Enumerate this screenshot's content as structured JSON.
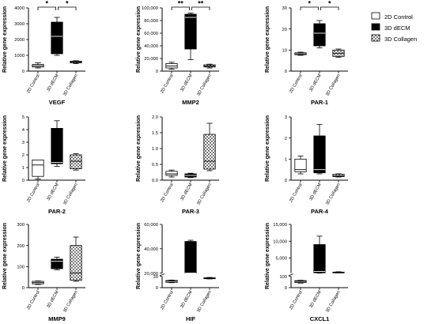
{
  "legend": {
    "items": [
      {
        "name": "2D Control",
        "color": "#ffffff",
        "pattern": "none"
      },
      {
        "name": "3D dECM",
        "color": "#000000",
        "pattern": "solid"
      },
      {
        "name": "3D Collagen",
        "color": "#c8c8c8",
        "pattern": "checker"
      }
    ]
  },
  "chart_data": [
    {
      "type": "boxplot",
      "title": "VEGF",
      "ylabel": "Relative gene expression",
      "ylim": [
        0,
        4000
      ],
      "yticks": [
        0,
        1000,
        2000,
        3000,
        4000
      ],
      "yticklabels": [
        "0",
        "1000",
        "2000",
        "3000",
        "4000"
      ],
      "categories": [
        "2D Control",
        "3D dECM",
        "3D Collagen"
      ],
      "boxes": [
        {
          "min": 200,
          "q1": 260,
          "median": 340,
          "q3": 420,
          "max": 520
        },
        {
          "min": 1000,
          "q1": 1100,
          "median": 2200,
          "q3": 3100,
          "max": 3400
        },
        {
          "min": 470,
          "q1": 520,
          "median": 580,
          "q3": 630,
          "max": 660
        }
      ],
      "significance": [
        {
          "from": 0,
          "to": 1,
          "label": "*"
        },
        {
          "from": 1,
          "to": 2,
          "label": "*"
        }
      ]
    },
    {
      "type": "boxplot",
      "title": "MMP2",
      "ylabel": "Relative gene expression",
      "ylim": [
        0,
        100000
      ],
      "yticks": [
        0,
        20000,
        40000,
        60000,
        80000,
        100000
      ],
      "yticklabels": [
        "0",
        "20,000",
        "40,000",
        "60,000",
        "80,000",
        "100,000"
      ],
      "categories": [
        "2D Control",
        "3D dECM",
        "3D Collagen"
      ],
      "boxes": [
        {
          "min": 3000,
          "q1": 5000,
          "median": 8000,
          "q3": 12000,
          "max": 14000
        },
        {
          "min": 18000,
          "q1": 35000,
          "median": 85000,
          "q3": 90000,
          "max": 92000
        },
        {
          "min": 5000,
          "q1": 6500,
          "median": 8000,
          "q3": 10000,
          "max": 11000
        }
      ],
      "significance": [
        {
          "from": 0,
          "to": 1,
          "label": "**"
        },
        {
          "from": 1,
          "to": 2,
          "label": "**"
        }
      ]
    },
    {
      "type": "boxplot",
      "title": "PAR-1",
      "ylabel": "Relative gene expression",
      "ylim": [
        0,
        30
      ],
      "yticks": [
        0,
        10,
        20,
        30
      ],
      "yticklabels": [
        "0",
        "10",
        "20",
        "30"
      ],
      "categories": [
        "2D Control",
        "3D dECM",
        "3D Collagen"
      ],
      "boxes": [
        {
          "min": 7.5,
          "q1": 7.8,
          "median": 8.2,
          "q3": 8.7,
          "max": 9.0
        },
        {
          "min": 11,
          "q1": 12,
          "median": 18,
          "q3": 22.5,
          "max": 24
        },
        {
          "min": 6.5,
          "q1": 7,
          "median": 8.5,
          "q3": 10,
          "max": 10.5
        }
      ],
      "significance": [
        {
          "from": 0,
          "to": 1,
          "label": "*"
        },
        {
          "from": 1,
          "to": 2,
          "label": "*"
        }
      ]
    },
    {
      "type": "boxplot",
      "title": "PAR-2",
      "ylabel": "Relative gene expression",
      "ylim": [
        0,
        5
      ],
      "yticks": [
        0,
        1,
        2,
        3,
        4,
        5
      ],
      "yticklabels": [
        "0",
        "1",
        "2",
        "3",
        "4",
        "5"
      ],
      "categories": [
        "2D Control",
        "3D dECM",
        "3D Collagen"
      ],
      "boxes": [
        {
          "min": 0.1,
          "q1": 0.3,
          "median": 1.2,
          "q3": 1.6,
          "max": 1.6
        },
        {
          "min": 1.1,
          "q1": 1.3,
          "median": 1.4,
          "q3": 4.1,
          "max": 4.7
        },
        {
          "min": 0.8,
          "q1": 0.9,
          "median": 1.5,
          "q3": 2.0,
          "max": 2.1
        }
      ],
      "significance": []
    },
    {
      "type": "boxplot",
      "title": "PAR-3",
      "ylabel": "Relative gene expression",
      "ylim": [
        0,
        2.0
      ],
      "yticks": [
        0,
        0.5,
        1.0,
        1.5,
        2.0
      ],
      "yticklabels": [
        "0.0",
        "0.5",
        "1.0",
        "1.5",
        "2.0"
      ],
      "categories": [
        "2D Control",
        "3D dECM",
        "3D Collagen"
      ],
      "boxes": [
        {
          "min": 0.1,
          "q1": 0.15,
          "median": 0.2,
          "q3": 0.28,
          "max": 0.32
        },
        {
          "min": 0.08,
          "q1": 0.1,
          "median": 0.15,
          "q3": 0.2,
          "max": 0.22
        },
        {
          "min": 0.3,
          "q1": 0.35,
          "median": 0.6,
          "q3": 1.45,
          "max": 1.8
        }
      ],
      "significance": []
    },
    {
      "type": "boxplot",
      "title": "PAR-4",
      "ylabel": "Relative gene expression",
      "ylim": [
        0,
        3
      ],
      "yticks": [
        0,
        1,
        2,
        3
      ],
      "yticklabels": [
        "0",
        "1",
        "2",
        "3"
      ],
      "categories": [
        "2D Control",
        "3D dECM",
        "3D Collagen"
      ],
      "boxes": [
        {
          "min": 0.3,
          "q1": 0.4,
          "median": 0.5,
          "q3": 1.0,
          "max": 1.15
        },
        {
          "min": 0.3,
          "q1": 0.35,
          "median": 0.5,
          "q3": 2.1,
          "max": 2.65
        },
        {
          "min": 0.15,
          "q1": 0.17,
          "median": 0.2,
          "q3": 0.28,
          "max": 0.3
        }
      ],
      "significance": []
    },
    {
      "type": "boxplot",
      "title": "MMP9",
      "ylabel": "Relative gene expression",
      "ylim": [
        0,
        300
      ],
      "yticks": [
        0,
        100,
        200,
        300
      ],
      "yticklabels": [
        "0",
        "100",
        "200",
        "300"
      ],
      "categories": [
        "2D Control",
        "3D dECM",
        "3D Collagen"
      ],
      "boxes": [
        {
          "min": 15,
          "q1": 18,
          "median": 24,
          "q3": 30,
          "max": 32
        },
        {
          "min": 85,
          "q1": 90,
          "median": 125,
          "q3": 135,
          "max": 145
        },
        {
          "min": 30,
          "q1": 35,
          "median": 70,
          "q3": 200,
          "max": 240
        }
      ],
      "significance": []
    },
    {
      "type": "boxplot",
      "title": "HIF",
      "ylabel": "Relative gene expression",
      "ylim": [
        0,
        60000
      ],
      "axis_break": [
        30,
        20000
      ],
      "yticks": [
        0,
        30,
        20000,
        40000,
        60000
      ],
      "yticklabels": [
        "0",
        "30",
        "20,000",
        "40,000",
        "60,000"
      ],
      "categories": [
        "2D Control",
        "3D dECM",
        "3D Collagen"
      ],
      "boxes": [
        {
          "min": 13,
          "q1": 14,
          "median": 17,
          "q3": 19,
          "max": 20
        },
        {
          "min": 40,
          "q1": 42,
          "median": 44,
          "q3": 46000,
          "max": 47000
        },
        {
          "min": 23,
          "q1": 23.5,
          "median": 25,
          "q3": 26,
          "max": 27
        }
      ],
      "significance": []
    },
    {
      "type": "boxplot",
      "title": "CXCL1",
      "ylabel": "Relative gene expression",
      "ylim": [
        0,
        15000
      ],
      "axis_break": [
        100,
        500
      ],
      "yticks": [
        0,
        100,
        5000,
        10000,
        15000
      ],
      "yticklabels": [
        "0",
        "100",
        "5,000",
        "10,000",
        "15,000"
      ],
      "categories": [
        "2D Control",
        "3D dECM",
        "3D Collagen"
      ],
      "boxes": [
        {
          "min": 40,
          "q1": 45,
          "median": 55,
          "q3": 62,
          "max": 65
        },
        {
          "min": 500,
          "q1": 600,
          "median": 1000,
          "q3": 9000,
          "max": 11500
        },
        {
          "min": 600,
          "q1": 650,
          "median": 700,
          "q3": 800,
          "max": 900
        }
      ],
      "significance": []
    }
  ]
}
